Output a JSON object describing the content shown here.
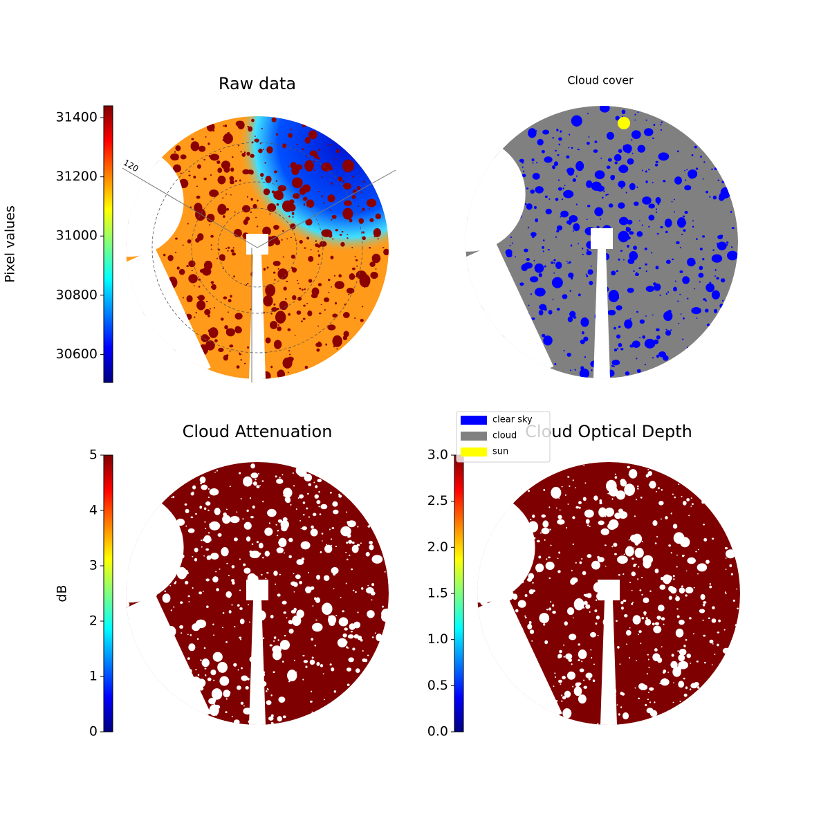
{
  "chart_data": [
    {
      "type": "image",
      "title": "Raw data",
      "colorbar_label": "Pixel values",
      "colormap": "jet",
      "ylim": [
        30505,
        31440
      ],
      "yticks": [
        30600,
        30800,
        31000,
        31200,
        31400
      ],
      "annotations": [
        "120"
      ]
    },
    {
      "type": "image",
      "title": "Cloud cover",
      "legend": [
        {
          "name": "clear sky",
          "color": "#0000ff"
        },
        {
          "name": "cloud",
          "color": "#808080"
        },
        {
          "name": "sun",
          "color": "#ffff00"
        }
      ]
    },
    {
      "type": "image",
      "title": "Cloud Attenuation",
      "colorbar_label": "dB",
      "colormap": "jet",
      "ylim": [
        0,
        5
      ],
      "yticks": [
        0,
        1,
        2,
        3,
        4,
        5
      ]
    },
    {
      "type": "image",
      "title": "Cloud Optical Depth",
      "colormap": "jet",
      "ylim": [
        0,
        3
      ],
      "yticks": [
        {
          "value": 0,
          "label": "0.0"
        },
        0.5,
        {
          "value": 1,
          "label": "1.0"
        },
        1.5,
        {
          "value": 2,
          "label": "2.0"
        },
        2.5,
        {
          "value": 3,
          "label": "3.0"
        }
      ]
    }
  ]
}
